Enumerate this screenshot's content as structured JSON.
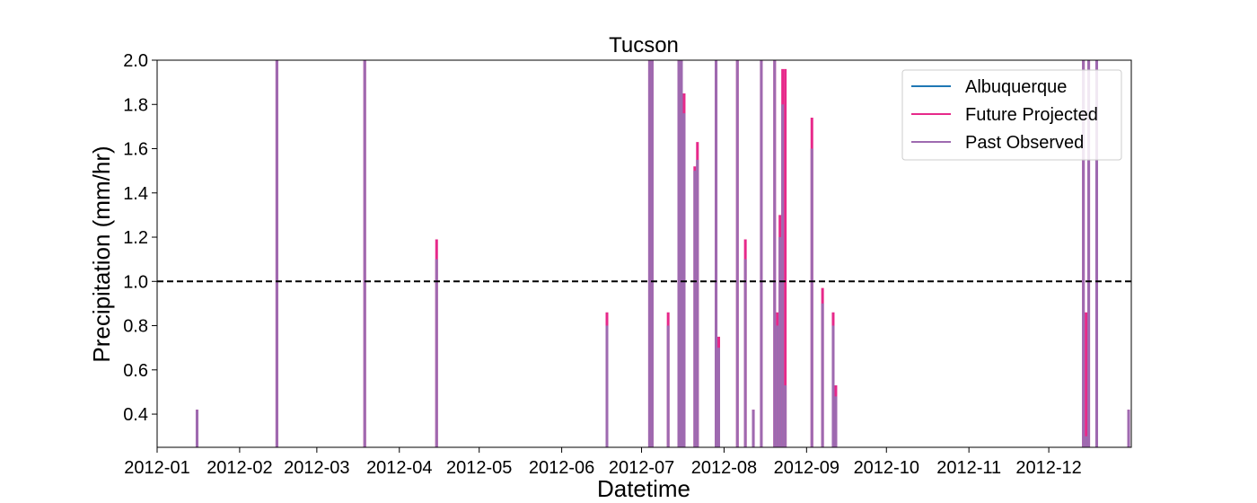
{
  "chart_data": {
    "type": "line",
    "title": "Tucson",
    "xlabel": "Datetime",
    "ylabel": "Precipitation (mm/hr)",
    "ylim": [
      0.25,
      2.0
    ],
    "xlim": [
      "2012-01-01",
      "2012-12-31"
    ],
    "x_ticks": [
      "2012-01",
      "2012-02",
      "2012-03",
      "2012-04",
      "2012-05",
      "2012-06",
      "2012-07",
      "2012-08",
      "2012-09",
      "2012-10",
      "2012-11",
      "2012-12"
    ],
    "y_ticks": [
      "0.4",
      "0.6",
      "0.8",
      "1.0",
      "1.2",
      "1.4",
      "1.6",
      "1.8",
      "2.0"
    ],
    "grid": false,
    "legend": "top-right",
    "threshold": {
      "value": 1.0,
      "style": "dashed",
      "color": "#000000"
    },
    "series": [
      {
        "name": "Albuquerque",
        "color": "#1f77b4",
        "points": []
      },
      {
        "name": "Future Projected",
        "color": "#e7298a",
        "points": [
          [
            "2012-01-16",
            0.42
          ],
          [
            "2012-02-15",
            2.0
          ],
          [
            "2012-03-19",
            2.0
          ],
          [
            "2012-04-15",
            1.19
          ],
          [
            "2012-06-18",
            0.86
          ],
          [
            "2012-07-04",
            2.0
          ],
          [
            "2012-07-05",
            2.0
          ],
          [
            "2012-07-11",
            0.86
          ],
          [
            "2012-07-15",
            2.0
          ],
          [
            "2012-07-16",
            2.0
          ],
          [
            "2012-07-17",
            1.85
          ],
          [
            "2012-07-21",
            1.52
          ],
          [
            "2012-07-22",
            1.63
          ],
          [
            "2012-07-29",
            2.0
          ],
          [
            "2012-07-30",
            0.75
          ],
          [
            "2012-08-06",
            2.0
          ],
          [
            "2012-08-09",
            1.19
          ],
          [
            "2012-08-12",
            0.42
          ],
          [
            "2012-08-15",
            2.0
          ],
          [
            "2012-08-20",
            2.0
          ],
          [
            "2012-08-21",
            0.86
          ],
          [
            "2012-08-22",
            1.3
          ],
          [
            "2012-08-23",
            1.96
          ],
          [
            "2012-08-24",
            1.96
          ],
          [
            "2012-09-03",
            1.74
          ],
          [
            "2012-09-07",
            0.97
          ],
          [
            "2012-09-11",
            0.86
          ],
          [
            "2012-09-12",
            0.53
          ],
          [
            "2012-12-14",
            2.0
          ],
          [
            "2012-12-15",
            0.86
          ],
          [
            "2012-12-16",
            2.0
          ],
          [
            "2012-12-19",
            2.0
          ],
          [
            "2012-12-31",
            0.42
          ]
        ]
      },
      {
        "name": "Past Observed",
        "color": "#9e6ab0",
        "points": [
          [
            "2012-01-16",
            0.42
          ],
          [
            "2012-02-15",
            2.0
          ],
          [
            "2012-03-19",
            2.0
          ],
          [
            "2012-04-15",
            1.1
          ],
          [
            "2012-06-18",
            0.8
          ],
          [
            "2012-07-04",
            2.0
          ],
          [
            "2012-07-05",
            2.0
          ],
          [
            "2012-07-11",
            0.8
          ],
          [
            "2012-07-15",
            2.0
          ],
          [
            "2012-07-16",
            2.0
          ],
          [
            "2012-07-17",
            1.76
          ],
          [
            "2012-07-21",
            1.5
          ],
          [
            "2012-07-22",
            1.55
          ],
          [
            "2012-07-29",
            2.0
          ],
          [
            "2012-07-30",
            0.7
          ],
          [
            "2012-08-06",
            2.0
          ],
          [
            "2012-08-09",
            1.1
          ],
          [
            "2012-08-12",
            0.42
          ],
          [
            "2012-08-15",
            2.0
          ],
          [
            "2012-08-20",
            2.0
          ],
          [
            "2012-08-21",
            0.8
          ],
          [
            "2012-08-22",
            1.2
          ],
          [
            "2012-08-23",
            1.8
          ],
          [
            "2012-08-24",
            0.53
          ],
          [
            "2012-09-03",
            1.6
          ],
          [
            "2012-09-07",
            0.9
          ],
          [
            "2012-09-11",
            0.8
          ],
          [
            "2012-09-12",
            0.48
          ],
          [
            "2012-12-14",
            2.0
          ],
          [
            "2012-12-15",
            0.3
          ],
          [
            "2012-12-16",
            2.0
          ],
          [
            "2012-12-19",
            2.0
          ],
          [
            "2012-12-31",
            0.42
          ]
        ]
      }
    ]
  }
}
